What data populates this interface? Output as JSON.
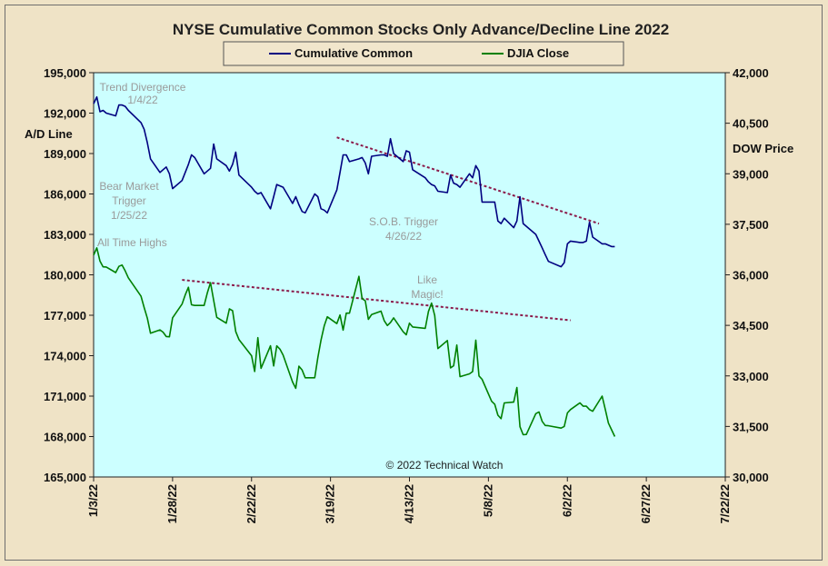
{
  "chart_data": {
    "type": "line",
    "title": "NYSE Cumulative  Common Stocks Only Advance/Decline  Line 2022",
    "y_left_label": "A/D Line",
    "y_right_label": "DOW  Price",
    "x_ticks": [
      "1/3/22",
      "1/28/22",
      "2/22/22",
      "3/19/22",
      "4/13/22",
      "5/8/22",
      "6/2/22",
      "6/27/22",
      "7/22/22"
    ],
    "x_range": [
      "2022-01-03",
      "2022-07-22"
    ],
    "y_left_ticks": [
      "195,000",
      "192,000",
      "189,000",
      "186,000",
      "183,000",
      "180,000",
      "177,000",
      "174,000",
      "171,000",
      "168,000",
      "165,000"
    ],
    "y_left_range": [
      165000,
      195000
    ],
    "y_right_ticks": [
      "42,000",
      "40,500",
      "39,000",
      "37,500",
      "36,000",
      "34,500",
      "33,000",
      "31,500",
      "30,000"
    ],
    "y_right_range": [
      30000,
      42000
    ],
    "grid": false,
    "legend_position": "top-center",
    "copyright": "© 2022 Technical Watch",
    "series": [
      {
        "name": "Cumulative Common",
        "axis": "left",
        "color": "#000080",
        "x": [
          "2022-01-03",
          "2022-01-04",
          "2022-01-05",
          "2022-01-06",
          "2022-01-07",
          "2022-01-10",
          "2022-01-11",
          "2022-01-12",
          "2022-01-13",
          "2022-01-14",
          "2022-01-18",
          "2022-01-19",
          "2022-01-20",
          "2022-01-21",
          "2022-01-24",
          "2022-01-25",
          "2022-01-26",
          "2022-01-27",
          "2022-01-28",
          "2022-01-31",
          "2022-02-01",
          "2022-02-02",
          "2022-02-03",
          "2022-02-04",
          "2022-02-07",
          "2022-02-08",
          "2022-02-09",
          "2022-02-10",
          "2022-02-11",
          "2022-02-14",
          "2022-02-15",
          "2022-02-16",
          "2022-02-17",
          "2022-02-18",
          "2022-02-22",
          "2022-02-23",
          "2022-02-24",
          "2022-02-25",
          "2022-02-28",
          "2022-03-01",
          "2022-03-02",
          "2022-03-03",
          "2022-03-04",
          "2022-03-07",
          "2022-03-08",
          "2022-03-09",
          "2022-03-10",
          "2022-03-11",
          "2022-03-14",
          "2022-03-15",
          "2022-03-16",
          "2022-03-17",
          "2022-03-18",
          "2022-03-21",
          "2022-03-22",
          "2022-03-23",
          "2022-03-24",
          "2022-03-25",
          "2022-03-28",
          "2022-03-29",
          "2022-03-30",
          "2022-03-31",
          "2022-04-01",
          "2022-04-04",
          "2022-04-05",
          "2022-04-06",
          "2022-04-07",
          "2022-04-08",
          "2022-04-11",
          "2022-04-12",
          "2022-04-13",
          "2022-04-14",
          "2022-04-18",
          "2022-04-19",
          "2022-04-20",
          "2022-04-21",
          "2022-04-22",
          "2022-04-25",
          "2022-04-26",
          "2022-04-27",
          "2022-04-28",
          "2022-04-29",
          "2022-05-02",
          "2022-05-03",
          "2022-05-04",
          "2022-05-05",
          "2022-05-06",
          "2022-05-09",
          "2022-05-10",
          "2022-05-11",
          "2022-05-12",
          "2022-05-13",
          "2022-05-16",
          "2022-05-17",
          "2022-05-18",
          "2022-05-19",
          "2022-05-20"
        ],
        "values": [
          192700,
          193200,
          192100,
          192200,
          192000,
          191800,
          192600,
          192600,
          192500,
          192200,
          191300,
          190800,
          189800,
          188600,
          187600,
          187800,
          188000,
          187500,
          186400,
          187000,
          187600,
          188200,
          188900,
          188700,
          187500,
          187700,
          187900,
          189700,
          188600,
          188100,
          187700,
          188200,
          189100,
          187400,
          186500,
          186200,
          186000,
          186100,
          184900,
          185800,
          186700,
          186600,
          186500,
          185300,
          185800,
          185200,
          184700,
          184600,
          186000,
          185800,
          184900,
          184800,
          184600,
          186300,
          187600,
          188900,
          188900,
          188400,
          188600,
          188700,
          188300,
          187500,
          188800,
          188900,
          188900,
          188800,
          190100,
          189000,
          188400,
          189200,
          189100,
          187800,
          187200,
          186900,
          186700,
          186600,
          186200,
          186100,
          187400,
          186800,
          186700,
          186500,
          187500,
          187200,
          188100,
          187700,
          185400,
          185400,
          185400,
          184000,
          183800,
          184200,
          183500,
          184000,
          185800,
          183800,
          183600
        ],
        "values_late": []
      },
      {
        "name": "DJIA Close",
        "axis": "right",
        "color": "#008000",
        "x": [],
        "values": []
      }
    ],
    "annotations": [
      {
        "lines": [
          "Trend  Divergence",
          "1/4/22"
        ]
      },
      {
        "lines": [
          "Bear Market",
          "Trigger",
          "1/25/22"
        ]
      },
      {
        "lines": [
          "All Time Highs"
        ]
      },
      {
        "lines": [
          "S.O.B. Trigger",
          "4/26/22"
        ]
      },
      {
        "lines": [
          "Like",
          "Magic!"
        ]
      }
    ],
    "trendlines": [
      {
        "axis": "left",
        "from": [
          "2022-03-21",
          190200
        ],
        "to": [
          "2022-06-12",
          183800
        ]
      },
      {
        "axis": "right",
        "from": [
          "2022-01-31",
          35850
        ],
        "to": [
          "2022-06-03",
          34650
        ]
      }
    ]
  }
}
